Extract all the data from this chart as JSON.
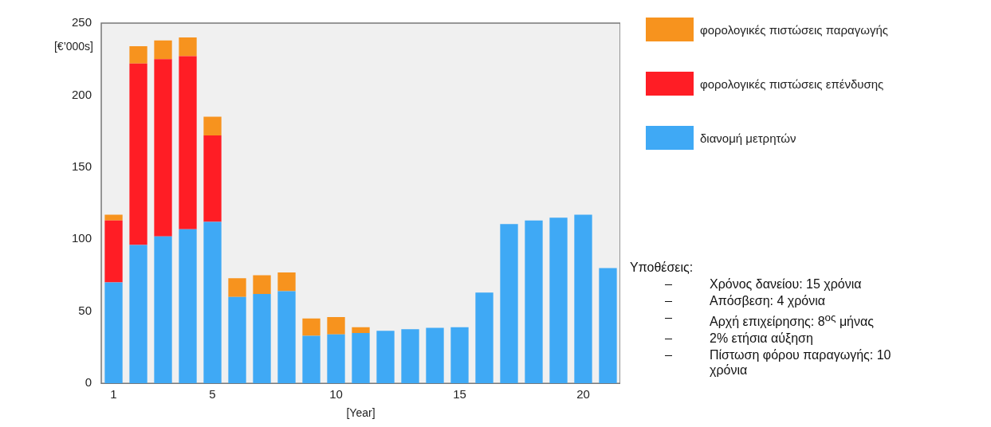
{
  "chart_data": {
    "type": "bar",
    "stacked": true,
    "xlabel": "[Year]",
    "ylabel": "[€’000s]",
    "categories": [
      "1",
      null,
      null,
      null,
      "5",
      null,
      null,
      null,
      null,
      "10",
      null,
      null,
      null,
      null,
      "15",
      null,
      null,
      null,
      null,
      "20",
      null
    ],
    "series": [
      {
        "name": "διανομή μετρητών",
        "color": "#3fa9f5",
        "values": [
          70,
          96,
          102,
          107,
          112,
          60,
          62,
          64,
          33,
          34,
          35,
          36.5,
          37.5,
          38.5,
          39,
          63,
          110.5,
          113,
          115,
          117,
          80
        ]
      },
      {
        "name": "φορολογικές πιστώσεις επένδυσης",
        "color": "#ff1d25",
        "values": [
          43,
          126,
          123,
          120,
          60,
          null,
          null,
          null,
          null,
          null,
          null,
          null,
          null,
          null,
          null,
          null,
          null,
          null,
          null,
          null,
          null
        ]
      },
      {
        "name": "φορολογικές πιστώσεις παραγωγής",
        "color": "#f7931e",
        "values": [
          4,
          12,
          13,
          13,
          13,
          13,
          13,
          13,
          12,
          12,
          4,
          null,
          null,
          null,
          null,
          null,
          null,
          null,
          null,
          null,
          null
        ]
      }
    ],
    "ylim": [
      0,
      250
    ],
    "yticks": [
      0,
      50,
      100,
      150,
      200,
      250
    ],
    "grid": false,
    "legend": "top right",
    "annotations": [
      "Υποθέσεις:",
      "Χρόνος δανείου: 15 χρόνια",
      "Απόσβεση: 4 χρόνια",
      "Αρχή επιχείρησης: 8$^{ος}$ μήνας",
      "2% ετήσια αύξηση",
      "Πίστωση φόρου παραγωγής: 10 χρόνια"
    ]
  }
}
